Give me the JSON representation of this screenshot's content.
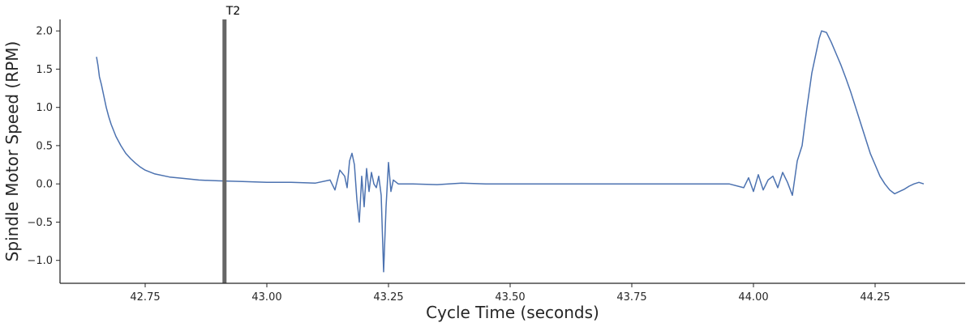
{
  "chart_data": {
    "type": "line",
    "xlabel": "Cycle Time (seconds)",
    "ylabel": "Spindle Motor Speed (RPM)",
    "xlim": [
      42.575,
      44.435
    ],
    "ylim": [
      -1.3,
      2.15
    ],
    "x_ticks": [
      42.75,
      43.0,
      43.25,
      43.5,
      43.75,
      44.0,
      44.25
    ],
    "x_tick_labels": [
      "42.75",
      "43.00",
      "43.25",
      "43.50",
      "43.75",
      "44.00",
      "44.25"
    ],
    "y_ticks": [
      -1.0,
      -0.5,
      0.0,
      0.5,
      1.0,
      1.5,
      2.0
    ],
    "y_tick_labels": [
      "−1.0",
      "−0.5",
      "0.0",
      "0.5",
      "1.0",
      "1.5",
      "2.0"
    ],
    "grid": false,
    "marker": {
      "label": "T2",
      "x": 42.913,
      "color": "#666666"
    },
    "series": [
      {
        "color": "#4c72b0",
        "x": [
          42.65,
          42.653,
          42.656,
          42.66,
          42.665,
          42.67,
          42.675,
          42.68,
          42.69,
          42.7,
          42.71,
          42.72,
          42.73,
          42.74,
          42.75,
          42.77,
          42.8,
          42.83,
          42.86,
          42.9,
          42.95,
          43.0,
          43.05,
          43.1,
          43.13,
          43.14,
          43.15,
          43.16,
          43.165,
          43.17,
          43.175,
          43.18,
          43.185,
          43.19,
          43.195,
          43.2,
          43.205,
          43.21,
          43.215,
          43.22,
          43.225,
          43.23,
          43.235,
          43.24,
          43.245,
          43.25,
          43.255,
          43.26,
          43.27,
          43.3,
          43.35,
          43.4,
          43.45,
          43.5,
          43.55,
          43.6,
          43.65,
          43.7,
          43.75,
          43.8,
          43.85,
          43.9,
          43.95,
          43.98,
          43.99,
          44.0,
          44.01,
          44.02,
          44.03,
          44.04,
          44.05,
          44.06,
          44.07,
          44.08,
          44.09,
          44.1,
          44.11,
          44.12,
          44.13,
          44.135,
          44.14,
          44.15,
          44.16,
          44.17,
          44.18,
          44.19,
          44.2,
          44.21,
          44.22,
          44.23,
          44.24,
          44.25,
          44.26,
          44.27,
          44.28,
          44.29,
          44.3,
          44.31,
          44.32,
          44.33,
          44.34,
          44.35
        ],
        "y": [
          1.66,
          1.55,
          1.4,
          1.3,
          1.15,
          1.0,
          0.88,
          0.78,
          0.62,
          0.5,
          0.4,
          0.33,
          0.27,
          0.22,
          0.18,
          0.13,
          0.09,
          0.07,
          0.05,
          0.04,
          0.03,
          0.02,
          0.02,
          0.01,
          0.05,
          -0.08,
          0.18,
          0.1,
          -0.05,
          0.3,
          0.4,
          0.25,
          -0.2,
          -0.5,
          0.1,
          -0.3,
          0.2,
          -0.1,
          0.15,
          0.0,
          -0.05,
          0.1,
          -0.15,
          -1.15,
          -0.3,
          0.28,
          -0.1,
          0.05,
          0.0,
          0.0,
          -0.01,
          0.01,
          0.0,
          0.0,
          0.0,
          0.0,
          0.0,
          0.0,
          0.0,
          0.0,
          0.0,
          0.0,
          0.0,
          -0.05,
          0.08,
          -0.1,
          0.12,
          -0.08,
          0.05,
          0.1,
          -0.05,
          0.15,
          0.02,
          -0.15,
          0.3,
          0.5,
          1.0,
          1.45,
          1.75,
          1.9,
          2.0,
          1.98,
          1.85,
          1.7,
          1.55,
          1.38,
          1.2,
          1.0,
          0.8,
          0.6,
          0.4,
          0.25,
          0.1,
          0.0,
          -0.08,
          -0.13,
          -0.1,
          -0.07,
          -0.03,
          0.0,
          0.02,
          0.0
        ]
      }
    ]
  }
}
